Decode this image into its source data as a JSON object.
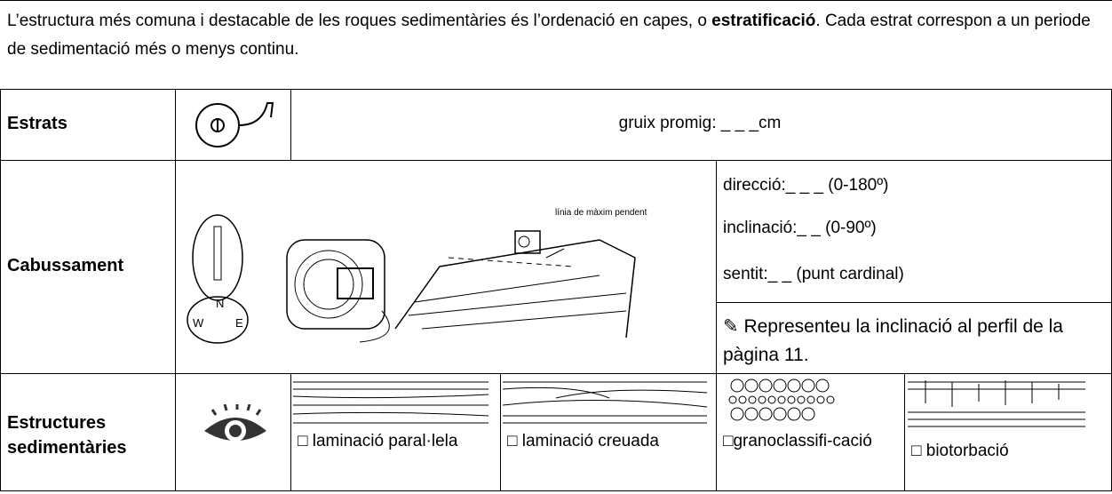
{
  "intro": {
    "text_start": "L’estructura més comuna i destacable de les roques sedimentàries és l’ordenació en capes, o ",
    "bold": "estratificació",
    "text_end": ". Cada estrat correspon a un periode de sedimentació més o menys continu."
  },
  "table": {
    "rows": [
      {
        "label": "Estrats",
        "content": "gruix promig: _ _ _cm"
      },
      {
        "label": "Cabussament",
        "figure": {
          "slope_label": "línia de màxim pendent",
          "compass": [
            "N",
            "W",
            "E"
          ]
        },
        "fields": [
          "direcció:_ _ _ (0-180º)",
          "inclinació:_ _ (0-90º)",
          "sentit:_ _ (punt cardinal)"
        ],
        "note": "Representeu la inclinació al perfil de la pàgina 11."
      },
      {
        "label": "Estructures sedimentàries",
        "items": [
          "□ laminació paral·lela",
          "□ laminació creuada",
          "□granoclassifi-cació",
          "□ biotorbació"
        ]
      }
    ]
  }
}
